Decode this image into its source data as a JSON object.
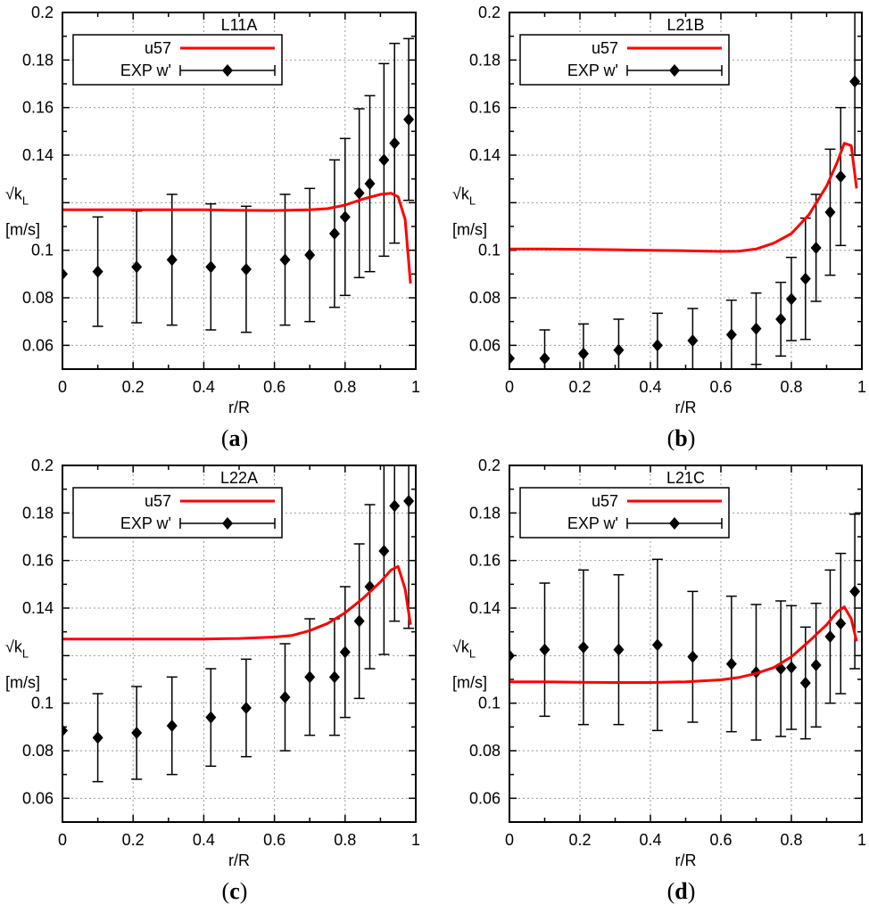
{
  "chart_data": [
    {
      "type": "line",
      "panel": "a",
      "caption_letter": "a",
      "title": "L11A",
      "xlabel": "r/R",
      "ylabel_top": "√k",
      "ylabel_sub": "L",
      "ylabel_unit": "[m/s]",
      "xlim": [
        0,
        1
      ],
      "ylim": [
        0.05,
        0.2
      ],
      "xticks": [
        "0",
        "0.2",
        "0.4",
        "0.6",
        "0.8",
        "1"
      ],
      "yticks": [
        "0.06",
        "0.08",
        "0.1",
        "0.14",
        "0.16",
        "0.18",
        "0.2"
      ],
      "grid": true,
      "legend_position": "top-left",
      "series": [
        {
          "name": "u57",
          "kind": "line",
          "color": "#ff0000",
          "x": [
            0,
            0.1,
            0.2,
            0.3,
            0.4,
            0.5,
            0.6,
            0.7,
            0.75,
            0.8,
            0.85,
            0.9,
            0.93,
            0.95,
            0.97,
            0.985
          ],
          "y": [
            0.117,
            0.117,
            0.117,
            0.117,
            0.117,
            0.1168,
            0.1167,
            0.117,
            0.1175,
            0.119,
            0.1215,
            0.1235,
            0.124,
            0.1225,
            0.113,
            0.086
          ]
        },
        {
          "name": "EXP w'",
          "kind": "errorbar",
          "color": "#000000",
          "x": [
            0,
            0.1,
            0.21,
            0.31,
            0.42,
            0.52,
            0.63,
            0.7,
            0.77,
            0.8,
            0.84,
            0.87,
            0.91,
            0.94,
            0.98
          ],
          "y": [
            0.09,
            0.091,
            0.093,
            0.096,
            0.093,
            0.092,
            0.096,
            0.098,
            0.107,
            0.114,
            0.124,
            0.128,
            0.138,
            0.145,
            0.155
          ],
          "err": [
            0,
            0.023,
            0.0235,
            0.0275,
            0.0265,
            0.0265,
            0.0275,
            0.028,
            0.031,
            0.033,
            0.0355,
            0.037,
            0.0405,
            0.042,
            0.034
          ]
        }
      ]
    },
    {
      "type": "line",
      "panel": "b",
      "caption_letter": "b",
      "title": "L21B",
      "xlabel": "r/R",
      "ylabel_top": "√k",
      "ylabel_sub": "L",
      "ylabel_unit": "[m/s]",
      "xlim": [
        0,
        1
      ],
      "ylim": [
        0.05,
        0.2
      ],
      "xticks": [
        "0",
        "0.2",
        "0.4",
        "0.6",
        "0.8",
        "1"
      ],
      "yticks": [
        "0.06",
        "0.08",
        "0.1",
        "0.14",
        "0.16",
        "0.18",
        "0.2"
      ],
      "grid": true,
      "legend_position": "top-left",
      "series": [
        {
          "name": "u57",
          "kind": "line",
          "color": "#ff0000",
          "x": [
            0,
            0.1,
            0.2,
            0.3,
            0.4,
            0.5,
            0.6,
            0.65,
            0.7,
            0.75,
            0.8,
            0.85,
            0.9,
            0.93,
            0.95,
            0.97,
            0.985
          ],
          "y": [
            0.1005,
            0.1005,
            0.1004,
            0.1002,
            0.1,
            0.0998,
            0.0995,
            0.0996,
            0.1005,
            0.103,
            0.107,
            0.115,
            0.127,
            0.137,
            0.145,
            0.144,
            0.126
          ]
        },
        {
          "name": "EXP w'",
          "kind": "errorbar",
          "color": "#000000",
          "x": [
            0,
            0.1,
            0.21,
            0.31,
            0.42,
            0.52,
            0.63,
            0.7,
            0.77,
            0.8,
            0.84,
            0.87,
            0.91,
            0.94,
            0.98
          ],
          "y": [
            0.0545,
            0.0545,
            0.0565,
            0.058,
            0.06,
            0.062,
            0.0645,
            0.067,
            0.071,
            0.0795,
            0.088,
            0.101,
            0.116,
            0.131,
            0.171
          ],
          "err": [
            0,
            0.012,
            0.0125,
            0.013,
            0.0135,
            0.0135,
            0.0145,
            0.015,
            0.0155,
            0.0175,
            0.0255,
            0.0225,
            0.0265,
            0.029,
            0.031
          ]
        }
      ]
    },
    {
      "type": "line",
      "panel": "c",
      "caption_letter": "c",
      "title": "L22A",
      "xlabel": "r/R",
      "ylabel_top": "√k",
      "ylabel_sub": "L",
      "ylabel_unit": "[m/s]",
      "xlim": [
        0,
        1
      ],
      "ylim": [
        0.05,
        0.2
      ],
      "xticks": [
        "0",
        "0.2",
        "0.4",
        "0.6",
        "0.8",
        "1"
      ],
      "yticks": [
        "0.06",
        "0.08",
        "0.1",
        "0.14",
        "0.16",
        "0.18",
        "0.2"
      ],
      "grid": true,
      "legend_position": "top-left",
      "series": [
        {
          "name": "u57",
          "kind": "line",
          "color": "#ff0000",
          "x": [
            0,
            0.1,
            0.2,
            0.3,
            0.4,
            0.5,
            0.6,
            0.65,
            0.7,
            0.75,
            0.8,
            0.85,
            0.9,
            0.93,
            0.95,
            0.97,
            0.985
          ],
          "y": [
            0.127,
            0.127,
            0.127,
            0.127,
            0.127,
            0.1272,
            0.1278,
            0.1285,
            0.1305,
            0.1335,
            0.138,
            0.144,
            0.151,
            0.156,
            0.1575,
            0.148,
            0.133
          ]
        },
        {
          "name": "EXP w'",
          "kind": "errorbar",
          "color": "#000000",
          "x": [
            0,
            0.1,
            0.21,
            0.31,
            0.42,
            0.52,
            0.63,
            0.7,
            0.77,
            0.8,
            0.84,
            0.87,
            0.91,
            0.94,
            0.98
          ],
          "y": [
            0.0885,
            0.0855,
            0.0875,
            0.0905,
            0.094,
            0.098,
            0.1025,
            0.111,
            0.111,
            0.1215,
            0.1345,
            0.149,
            0.164,
            0.183,
            0.185
          ],
          "err": [
            0,
            0.0185,
            0.0195,
            0.0205,
            0.0205,
            0.0205,
            0.0225,
            0.0245,
            0.0245,
            0.0275,
            0.0325,
            0.0345,
            0.0435,
            0.0485,
            0.0535
          ]
        }
      ]
    },
    {
      "type": "line",
      "panel": "d",
      "caption_letter": "d",
      "title": "L21C",
      "xlabel": "r/R",
      "ylabel_top": "√k",
      "ylabel_sub": "L",
      "ylabel_unit": "[m/s]",
      "xlim": [
        0,
        1
      ],
      "ylim": [
        0.05,
        0.2
      ],
      "xticks": [
        "0",
        "0.2",
        "0.4",
        "0.6",
        "0.8",
        "1"
      ],
      "yticks": [
        "0.06",
        "0.08",
        "0.1",
        "0.14",
        "0.16",
        "0.18",
        "0.2"
      ],
      "grid": true,
      "legend_position": "top-left",
      "series": [
        {
          "name": "u57",
          "kind": "line",
          "color": "#ff0000",
          "x": [
            0,
            0.1,
            0.2,
            0.3,
            0.4,
            0.5,
            0.6,
            0.65,
            0.7,
            0.75,
            0.8,
            0.85,
            0.9,
            0.93,
            0.95,
            0.97,
            0.985
          ],
          "y": [
            0.109,
            0.109,
            0.1088,
            0.1087,
            0.1087,
            0.109,
            0.1098,
            0.1108,
            0.1125,
            0.115,
            0.1195,
            0.126,
            0.133,
            0.1385,
            0.1405,
            0.1355,
            0.126
          ]
        },
        {
          "name": "EXP w'",
          "kind": "errorbar",
          "color": "#000000",
          "x": [
            0,
            0.1,
            0.21,
            0.31,
            0.42,
            0.52,
            0.63,
            0.7,
            0.77,
            0.8,
            0.84,
            0.87,
            0.91,
            0.94,
            0.98
          ],
          "y": [
            0.12,
            0.1225,
            0.1235,
            0.1225,
            0.1245,
            0.1195,
            0.1165,
            0.113,
            0.1145,
            0.115,
            0.1085,
            0.116,
            0.128,
            0.1335,
            0.147
          ],
          "err": [
            0,
            0.028,
            0.0325,
            0.0315,
            0.036,
            0.0275,
            0.0285,
            0.0285,
            0.0285,
            0.026,
            0.0235,
            0.026,
            0.028,
            0.0295,
            0.0325
          ]
        }
      ]
    }
  ]
}
